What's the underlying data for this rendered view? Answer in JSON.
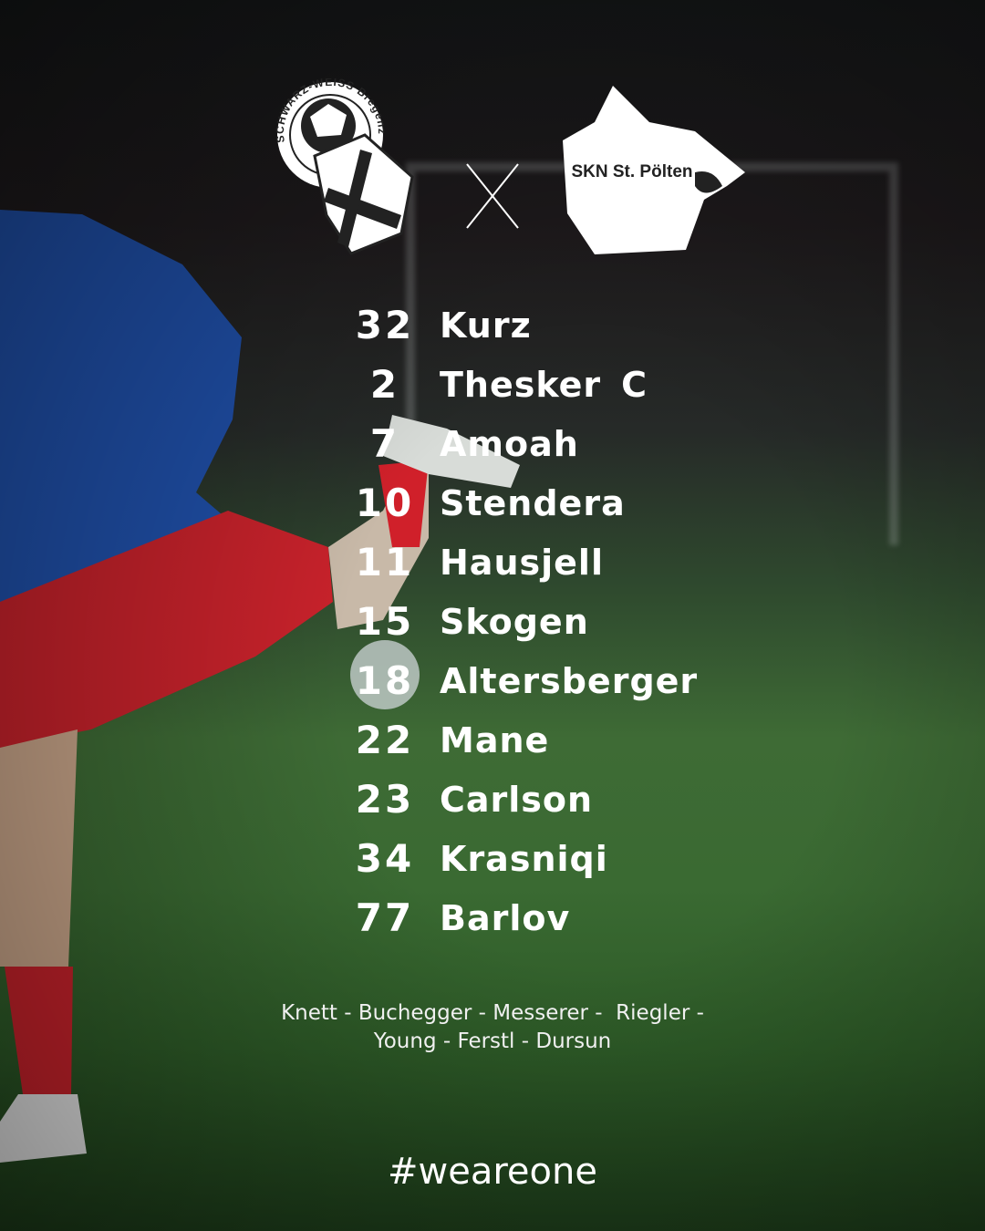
{
  "header": {
    "home_logo_text": "SCHWARZ-WEISS Bregenz",
    "away_logo_text": "SKN St. Pölten",
    "separator": "X"
  },
  "lineup": [
    {
      "number": "32",
      "name": "Kurz"
    },
    {
      "number": "2",
      "name": "Thesker",
      "captain": "C"
    },
    {
      "number": "7",
      "name": "Amoah"
    },
    {
      "number": "10",
      "name": "Stendera"
    },
    {
      "number": "11",
      "name": "Hausjell"
    },
    {
      "number": "15",
      "name": "Skogen"
    },
    {
      "number": "18",
      "name": "Altersberger"
    },
    {
      "number": "22",
      "name": "Mane"
    },
    {
      "number": "23",
      "name": "Carlson"
    },
    {
      "number": "34",
      "name": "Krasniqi"
    },
    {
      "number": "77",
      "name": "Barlov"
    }
  ],
  "substitutes": {
    "line1": "Knett - Buchegger - Messerer -  Riegler -",
    "line2": "Young - Ferstl - Dursun"
  },
  "hashtag": "#weareone",
  "colors": {
    "text": "#ffffff",
    "pitch": "#3e6b35",
    "kit_blue": "#1f4fa8",
    "kit_red": "#d0202a"
  }
}
